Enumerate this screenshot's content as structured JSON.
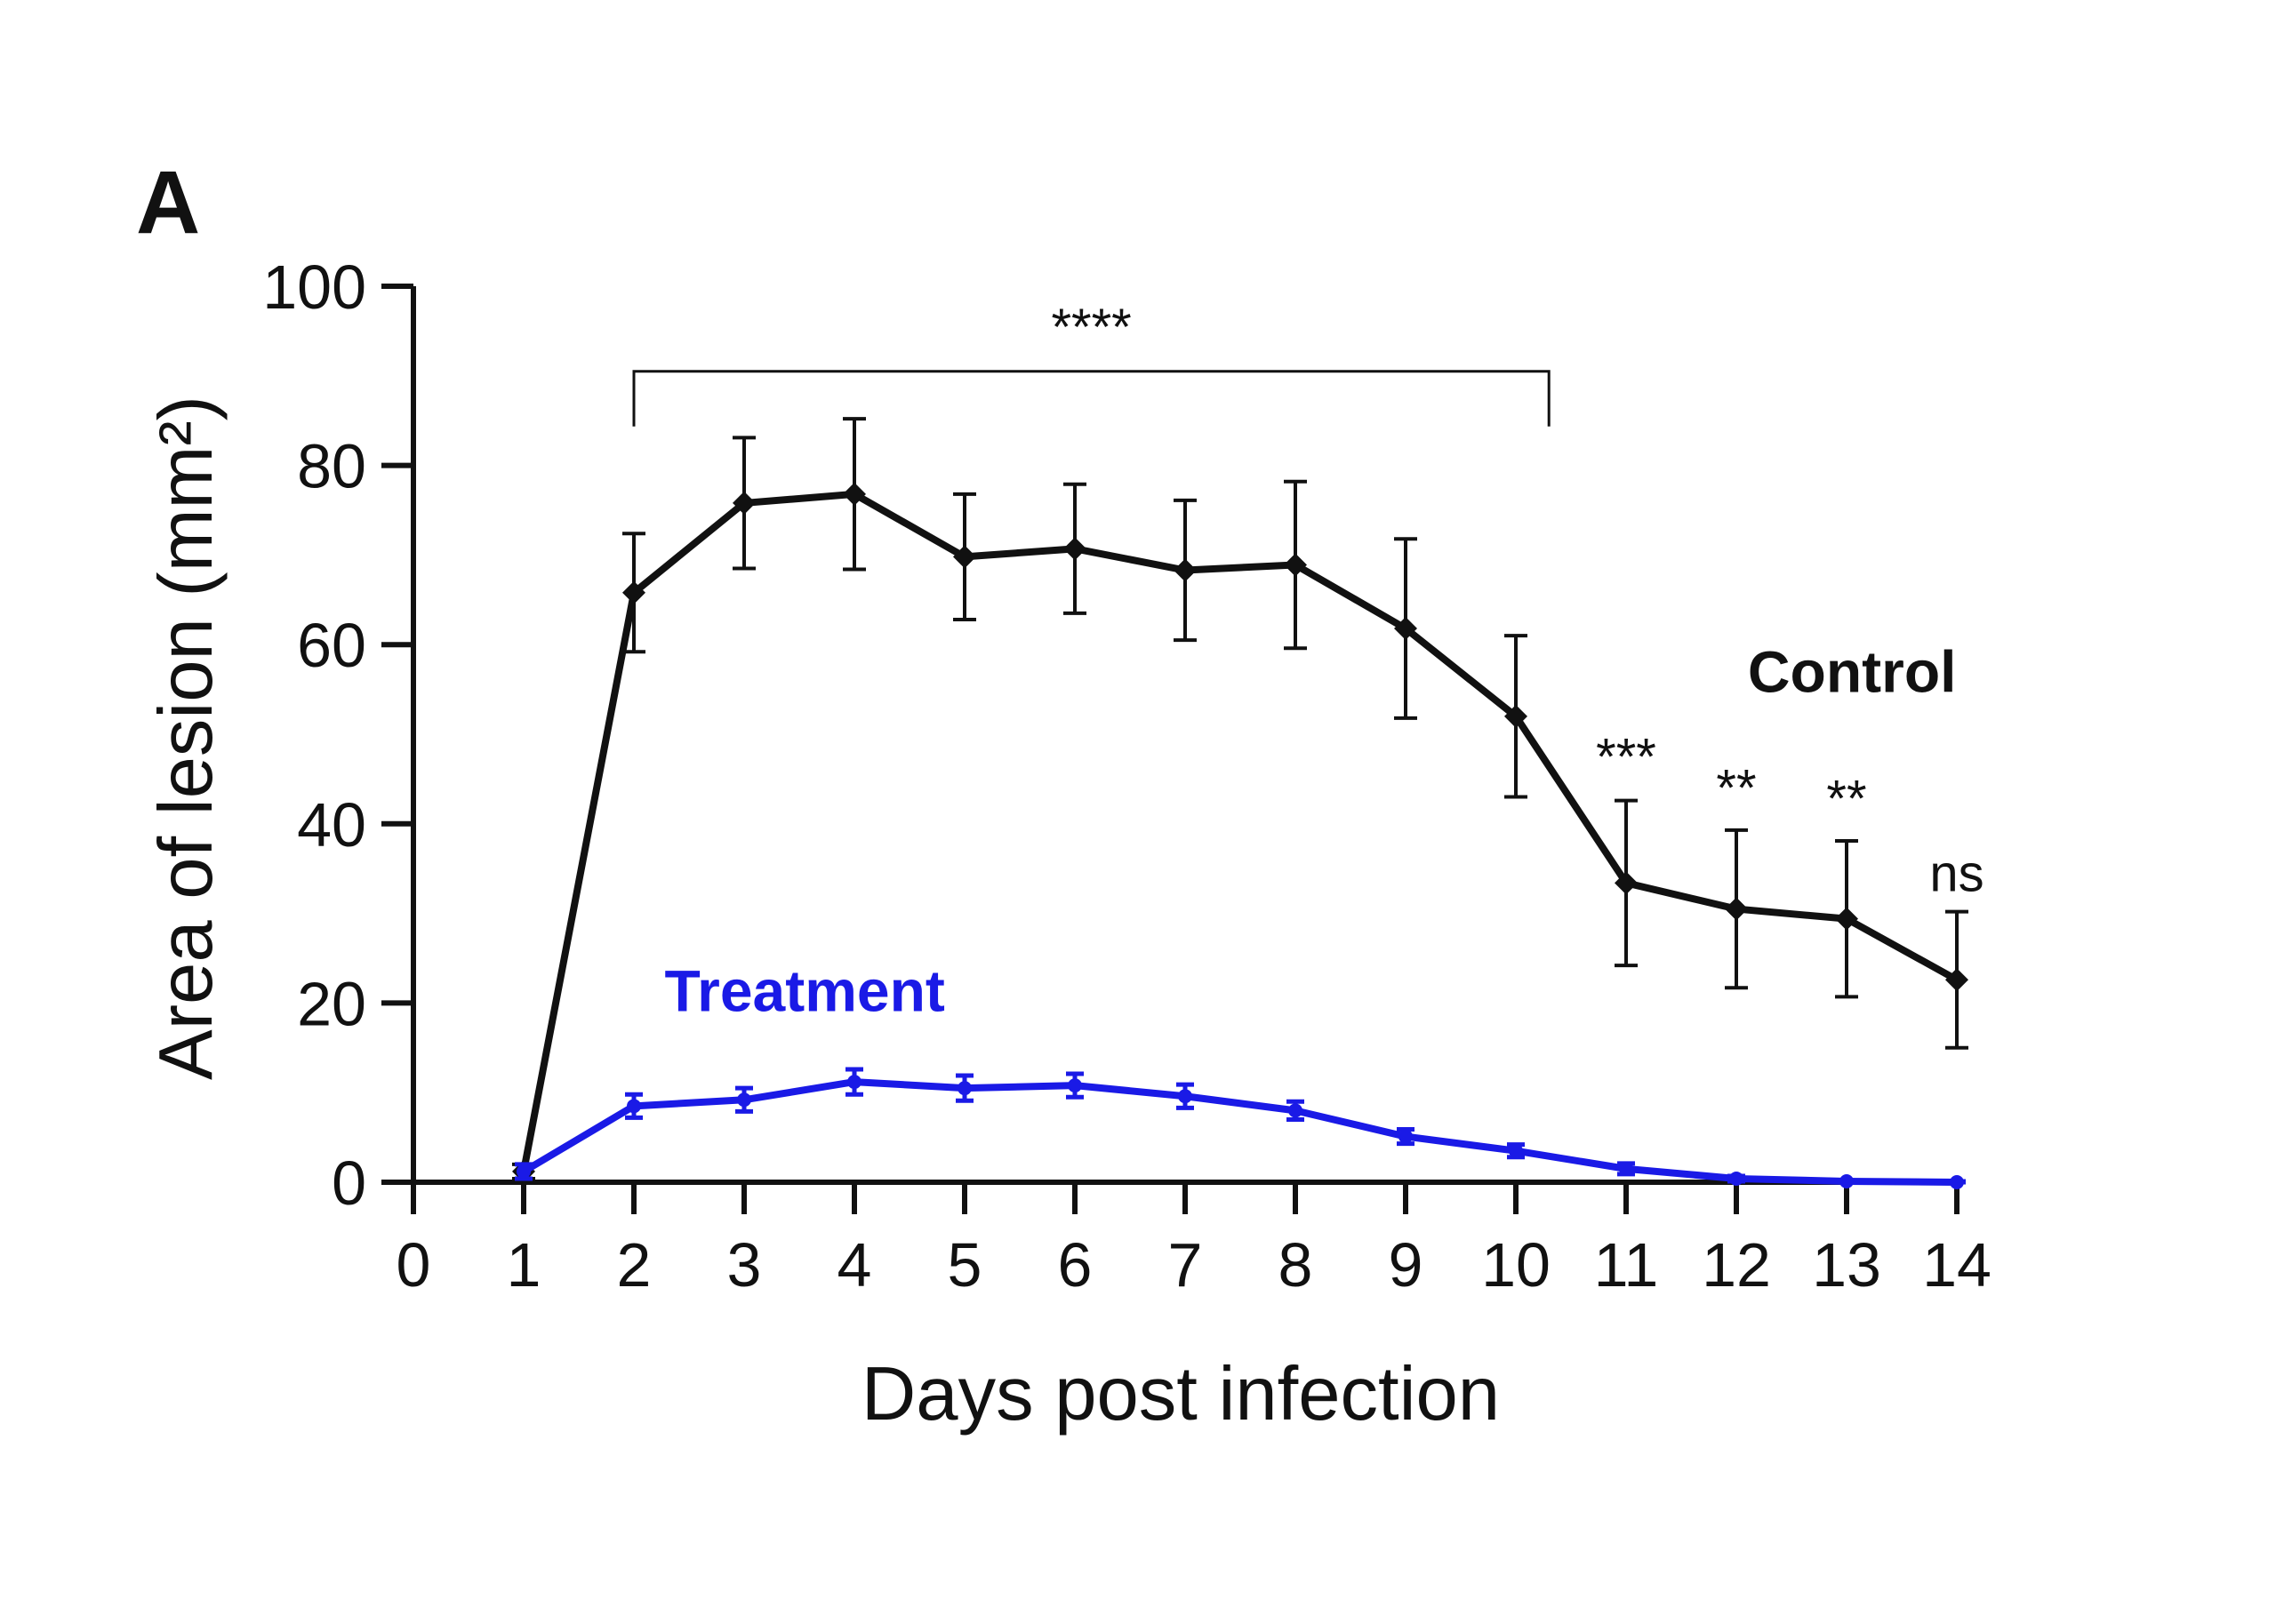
{
  "chart_data": {
    "type": "line",
    "panel_label": "A",
    "xlabel": "Days post infection",
    "ylabel": "Area of lesion (mm²)",
    "xlim": [
      0,
      14
    ],
    "ylim": [
      0,
      100
    ],
    "x_ticks": [
      0,
      1,
      2,
      3,
      4,
      5,
      6,
      7,
      8,
      9,
      10,
      11,
      12,
      13,
      14
    ],
    "y_ticks": [
      0,
      20,
      40,
      60,
      80,
      100
    ],
    "grid": false,
    "legend": "direct labels",
    "series": [
      {
        "name": "Control",
        "color": "#111111",
        "marker": "diamond",
        "x": [
          1,
          2,
          3,
          4,
          5,
          6,
          7,
          8,
          9,
          10,
          11,
          12,
          13,
          14
        ],
        "y": [
          1.2,
          65.8,
          75.8,
          76.8,
          69.8,
          70.7,
          68.3,
          68.9,
          61.8,
          52.0,
          33.4,
          30.5,
          29.4,
          22.6
        ],
        "err": [
          0.8,
          6.6,
          7.3,
          8.4,
          7.0,
          7.2,
          7.8,
          9.3,
          10.0,
          9.0,
          9.2,
          8.8,
          8.7,
          7.6
        ]
      },
      {
        "name": "Treatment",
        "color": "#1a1ae6",
        "marker": "circle",
        "x": [
          1,
          2,
          3,
          4,
          5,
          6,
          7,
          8,
          9,
          10,
          11,
          12,
          13,
          14
        ],
        "y": [
          1.2,
          8.5,
          9.2,
          11.2,
          10.5,
          10.8,
          9.6,
          8.0,
          5.1,
          3.5,
          1.5,
          0.4,
          0.1,
          0.0
        ],
        "err": [
          0.8,
          1.3,
          1.3,
          1.4,
          1.4,
          1.3,
          1.3,
          1.0,
          0.8,
          0.7,
          0.6,
          0.3,
          0.1,
          0.1
        ]
      }
    ],
    "annotations": {
      "bracket": {
        "x_from": 2,
        "x_to": 10.3,
        "y": 90.5,
        "label": "****"
      },
      "marks": [
        {
          "x": 11,
          "y": 45.5,
          "label": "***"
        },
        {
          "x": 12,
          "y": 42.0,
          "label": "**"
        },
        {
          "x": 13,
          "y": 40.8,
          "label": "**"
        },
        {
          "x": 14,
          "y": 32.5,
          "label": "ns"
        }
      ],
      "series_labels": [
        {
          "text": "Control",
          "x": 13.05,
          "y": 54.7
        },
        {
          "text": "Treatment",
          "x": 3.55,
          "y": 19.1
        }
      ]
    }
  }
}
